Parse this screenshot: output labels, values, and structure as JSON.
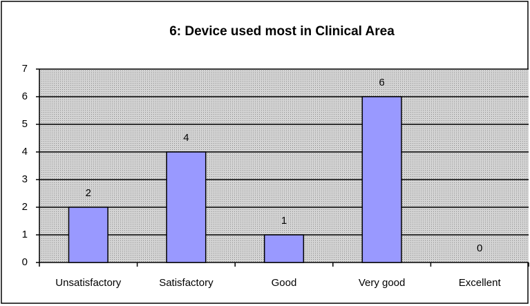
{
  "chart_data": {
    "type": "bar",
    "title": "6: Device used most in Clinical Area",
    "categories": [
      "Unsatisfactory",
      "Satisfactory",
      "Good",
      "Very good",
      "Excellent"
    ],
    "values": [
      2,
      4,
      1,
      6,
      0
    ],
    "color": "#9999ff",
    "ylim": [
      0,
      7
    ],
    "yticks": [
      0,
      1,
      2,
      3,
      4,
      5,
      6,
      7
    ],
    "grid": true
  }
}
